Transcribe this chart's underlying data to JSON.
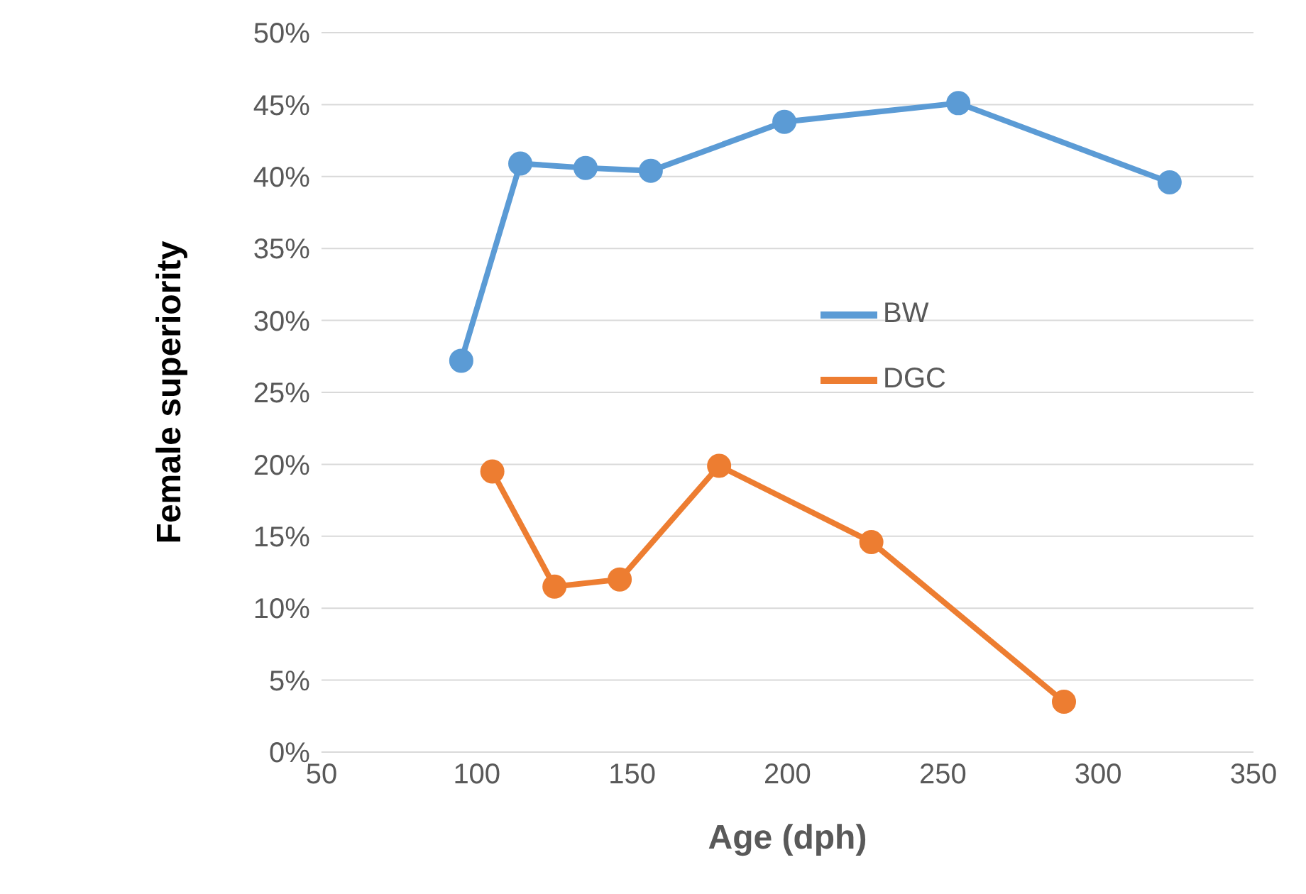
{
  "chart_data": {
    "type": "line",
    "xlabel": "Age (dph)",
    "ylabel": "Female superiority",
    "series": [
      {
        "name": "BW",
        "color": "#5b9bd5",
        "x": [
          95,
          114,
          135,
          156,
          199,
          255,
          323
        ],
        "values": [
          27.2,
          40.9,
          40.6,
          40.4,
          43.8,
          45.1,
          39.6
        ]
      },
      {
        "name": "DGC",
        "color": "#ed7d31",
        "x": [
          105,
          125,
          146,
          178,
          227,
          289
        ],
        "values": [
          19.5,
          11.5,
          12.0,
          19.9,
          14.6,
          3.5
        ]
      }
    ],
    "xlim": [
      50,
      350
    ],
    "xticks": [
      50,
      100,
      150,
      200,
      250,
      300,
      350
    ],
    "ylim": [
      0,
      50
    ],
    "yticks": [
      {
        "value": 0,
        "label": "0%"
      },
      {
        "value": 5,
        "label": "5%"
      },
      {
        "value": 10,
        "label": "10%"
      },
      {
        "value": 15,
        "label": "15%"
      },
      {
        "value": 20,
        "label": "20%"
      },
      {
        "value": 25,
        "label": "25%"
      },
      {
        "value": 30,
        "label": "30%"
      },
      {
        "value": 35,
        "label": "35%"
      },
      {
        "value": 40,
        "label": "40%"
      },
      {
        "value": 45,
        "label": "45%"
      },
      {
        "value": 50,
        "label": "50%"
      }
    ],
    "grid": "y",
    "legend": "right",
    "marker": "circle",
    "line_style": "solid"
  }
}
